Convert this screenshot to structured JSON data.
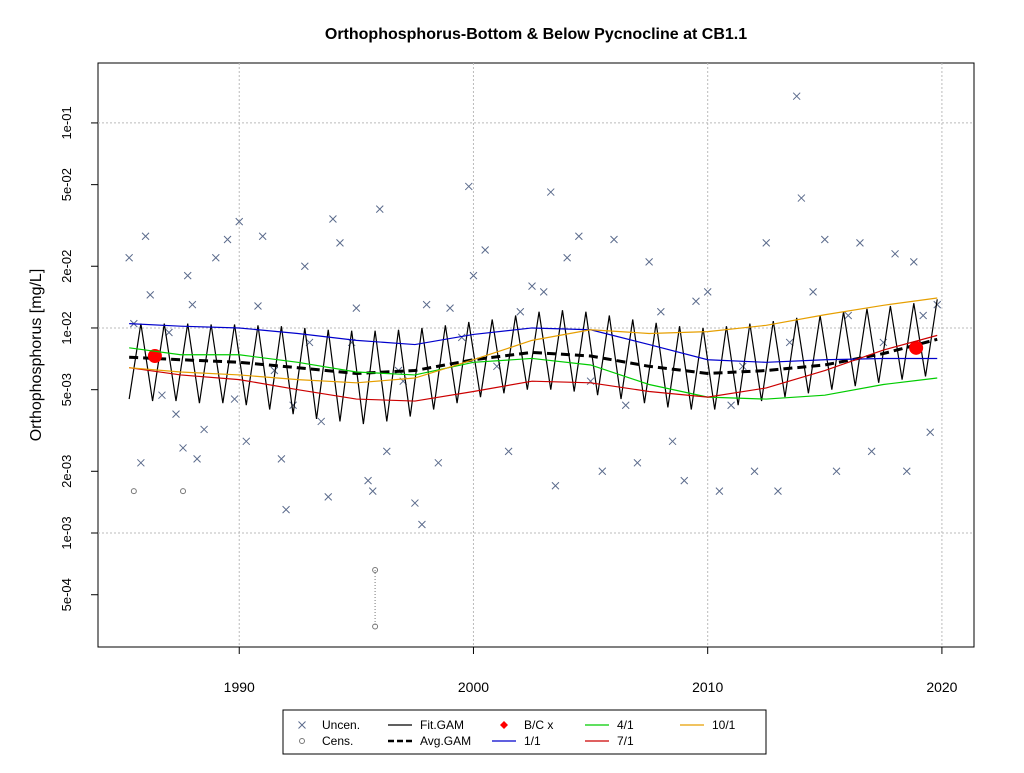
{
  "chart_data": {
    "type": "scatter",
    "title": "Orthophosphorus-Bottom & Below Pycnocline at CB1.1",
    "y_label": "Orthophosphorus [mg/L]",
    "log_y": true,
    "xlim": [
      1983.97,
      2021.37
    ],
    "xticks": [
      1990,
      2000,
      2010,
      2020
    ],
    "ylim": [
      0.000278,
      0.196
    ],
    "yticks": [
      {
        "value": 0.1,
        "label": "1e-01"
      },
      {
        "value": 0.05,
        "label": "5e-02"
      },
      {
        "value": 0.02,
        "label": "2e-02"
      },
      {
        "value": 0.01,
        "label": "1e-02"
      },
      {
        "value": 0.005,
        "label": "5e-03"
      },
      {
        "value": 0.002,
        "label": "2e-03"
      },
      {
        "value": 0.001,
        "label": "1e-03"
      },
      {
        "value": 0.0005,
        "label": "5e-04"
      }
    ],
    "y_grid_at": [
      0.1,
      0.01,
      0.001
    ],
    "grid": true,
    "legend": "bottom",
    "series": [
      {
        "name": "Uncen.",
        "kind": "points",
        "marker": "x",
        "color": "#5b6b8c",
        "x": [
          1985.3,
          1985.5,
          1985.8,
          1986,
          1986.2,
          1986.7,
          1987,
          1987.3,
          1987.6,
          1987.8,
          1988,
          1988.2,
          1988.5,
          1989,
          1989.5,
          1989.8,
          1990,
          1990.3,
          1990.8,
          1991,
          1991.5,
          1991.8,
          1992,
          1992.3,
          1992.8,
          1993,
          1993.5,
          1993.8,
          1994,
          1994.3,
          1994.8,
          1995,
          1995.5,
          1995.7,
          1996,
          1996.3,
          1996.8,
          1997,
          1997.5,
          1997.8,
          1998,
          1998.5,
          1999,
          1999.5,
          1999.8,
          2000,
          2000.5,
          2001,
          2001.5,
          2002,
          2002.5,
          2003,
          2003.3,
          2003.5,
          2004,
          2004.5,
          2005,
          2005.5,
          2006,
          2006.5,
          2007,
          2007.5,
          2008,
          2008.5,
          2009,
          2009.5,
          2010,
          2010.5,
          2011,
          2011.5,
          2012,
          2012.5,
          2013,
          2013.5,
          2013.8,
          2014,
          2014.5,
          2015,
          2015.5,
          2016,
          2016.5,
          2017,
          2017.5,
          2018,
          2018.5,
          2018.8,
          2019.2,
          2019.5,
          2019.8
        ],
        "values": [
          0.022,
          0.0105,
          0.0022,
          0.028,
          0.0145,
          0.0047,
          0.0095,
          0.0038,
          0.0026,
          0.018,
          0.013,
          0.0023,
          0.0032,
          0.022,
          0.027,
          0.0045,
          0.033,
          0.0028,
          0.0128,
          0.028,
          0.0062,
          0.0023,
          0.0013,
          0.0042,
          0.02,
          0.0085,
          0.0035,
          0.0015,
          0.034,
          0.026,
          0.0085,
          0.0125,
          0.0018,
          0.0016,
          0.038,
          0.0025,
          0.0062,
          0.0055,
          0.0014,
          0.0011,
          0.013,
          0.0022,
          0.0125,
          0.009,
          0.049,
          0.018,
          0.024,
          0.0065,
          0.0025,
          0.012,
          0.016,
          0.015,
          0.046,
          0.0017,
          0.022,
          0.028,
          0.0055,
          0.002,
          0.027,
          0.0042,
          0.0022,
          0.021,
          0.012,
          0.0028,
          0.0018,
          0.0135,
          0.015,
          0.0016,
          0.0042,
          0.0065,
          0.002,
          0.026,
          0.0016,
          0.0085,
          0.135,
          0.043,
          0.015,
          0.027,
          0.002,
          0.0115,
          0.026,
          0.0025,
          0.0085,
          0.023,
          0.002,
          0.021,
          0.0115,
          0.0031,
          0.013
        ]
      },
      {
        "name": "Cens.",
        "kind": "points",
        "marker": "o",
        "color": "#777777",
        "x": [
          1985.5,
          1987.6,
          1995.8,
          1995.8
        ],
        "values": [
          0.0016,
          0.0016,
          0.00066,
          0.00035
        ]
      },
      {
        "name": "Fit.GAM",
        "kind": "line",
        "linestyle": "solid",
        "color": "#000000",
        "x": [
          1985.3,
          1985.8,
          1986.3,
          1986.8,
          1987.3,
          1987.8,
          1988.3,
          1988.8,
          1989.3,
          1989.8,
          1990.3,
          1990.8,
          1991.3,
          1991.8,
          1992.3,
          1992.8,
          1993.3,
          1993.8,
          1994.3,
          1994.8,
          1995.3,
          1995.8,
          1996.3,
          1996.8,
          1997.3,
          1997.8,
          1998.3,
          1998.8,
          1999.3,
          1999.8,
          2000.3,
          2000.8,
          2001.3,
          2001.8,
          2002.3,
          2002.8,
          2003.3,
          2003.8,
          2004.3,
          2004.8,
          2005.3,
          2005.8,
          2006.3,
          2006.8,
          2007.3,
          2007.8,
          2008.3,
          2008.8,
          2009.3,
          2009.8,
          2010.3,
          2010.8,
          2011.3,
          2011.8,
          2012.3,
          2012.8,
          2013.3,
          2013.8,
          2014.3,
          2014.8,
          2015.3,
          2015.8,
          2016.3,
          2016.8,
          2017.3,
          2017.8,
          2018.3,
          2018.8,
          2019.3,
          2019.8
        ],
        "values": [
          0.0045,
          0.0105,
          0.0044,
          0.0105,
          0.0044,
          0.0105,
          0.0043,
          0.0104,
          0.0043,
          0.0104,
          0.0042,
          0.0103,
          0.004,
          0.0102,
          0.0038,
          0.01,
          0.0036,
          0.0098,
          0.0035,
          0.0097,
          0.0034,
          0.0097,
          0.0035,
          0.0098,
          0.0037,
          0.01,
          0.004,
          0.0103,
          0.0043,
          0.0107,
          0.0046,
          0.011,
          0.0048,
          0.0115,
          0.005,
          0.012,
          0.005,
          0.0122,
          0.0049,
          0.012,
          0.0047,
          0.0115,
          0.0045,
          0.011,
          0.0043,
          0.0106,
          0.0041,
          0.0102,
          0.004,
          0.01,
          0.004,
          0.0102,
          0.0042,
          0.0105,
          0.0044,
          0.0108,
          0.0046,
          0.0112,
          0.0048,
          0.0115,
          0.005,
          0.012,
          0.0052,
          0.0124,
          0.0054,
          0.0128,
          0.0056,
          0.0132,
          0.0058,
          0.0138
        ]
      },
      {
        "name": "Avg.GAM",
        "kind": "line",
        "linestyle": "dashed",
        "color": "#000000",
        "x": [
          1985.3,
          1987.5,
          1990,
          1992.5,
          1995,
          1997.5,
          2000,
          2002.5,
          2005,
          2007.5,
          2010,
          2012.5,
          2015,
          2017.5,
          2019.8
        ],
        "values": [
          0.0072,
          0.007,
          0.0068,
          0.0064,
          0.006,
          0.0062,
          0.007,
          0.0076,
          0.0073,
          0.0065,
          0.006,
          0.0062,
          0.0066,
          0.0075,
          0.0088
        ]
      },
      {
        "name": "B/C x",
        "kind": "points",
        "marker": "dot",
        "color": "#ff0000",
        "x": [
          1986.4,
          2018.9
        ],
        "values": [
          0.0073,
          0.008
        ]
      },
      {
        "name": "1/1",
        "kind": "line",
        "linestyle": "solid",
        "color": "#0000cc",
        "x": [
          1985.3,
          1987.5,
          1990,
          1992.5,
          1995,
          1997.5,
          2000,
          2002.5,
          2005,
          2007.5,
          2010,
          2012.5,
          2015,
          2017.5,
          2019.8
        ],
        "values": [
          0.0105,
          0.0102,
          0.01,
          0.0094,
          0.0087,
          0.0083,
          0.0093,
          0.01,
          0.0098,
          0.0083,
          0.007,
          0.0068,
          0.007,
          0.0071,
          0.0071
        ]
      },
      {
        "name": "4/1",
        "kind": "line",
        "linestyle": "solid",
        "color": "#00cc00",
        "x": [
          1985.3,
          1987.5,
          1990,
          1992.5,
          1995,
          1997.5,
          2000,
          2002.5,
          2005,
          2007.5,
          2010,
          2012.5,
          2015,
          2017.5,
          2019.8
        ],
        "values": [
          0.008,
          0.0074,
          0.0074,
          0.0068,
          0.0061,
          0.0059,
          0.0068,
          0.0071,
          0.0066,
          0.0053,
          0.0046,
          0.0045,
          0.0047,
          0.0053,
          0.0057
        ]
      },
      {
        "name": "7/1",
        "kind": "line",
        "linestyle": "solid",
        "color": "#cc0000",
        "x": [
          1985.3,
          1987.5,
          1990,
          1992.5,
          1995,
          1997.5,
          2000,
          2002.5,
          2005,
          2007.5,
          2010,
          2012.5,
          2015,
          2017.5,
          2019.8
        ],
        "values": [
          0.0064,
          0.0059,
          0.0056,
          0.005,
          0.0045,
          0.0044,
          0.0049,
          0.0055,
          0.0054,
          0.0049,
          0.0046,
          0.0051,
          0.0062,
          0.0078,
          0.0092
        ]
      },
      {
        "name": "10/1",
        "kind": "line",
        "linestyle": "solid",
        "color": "#e69f00",
        "x": [
          1985.3,
          1987.5,
          1990,
          1992.5,
          1995,
          1997.5,
          2000,
          2002.5,
          2005,
          2007.5,
          2010,
          2012.5,
          2015,
          2017.5,
          2019.8
        ],
        "values": [
          0.0064,
          0.0061,
          0.0059,
          0.0056,
          0.0054,
          0.0057,
          0.007,
          0.0087,
          0.0098,
          0.0094,
          0.0096,
          0.0103,
          0.0116,
          0.0129,
          0.014
        ]
      }
    ]
  }
}
